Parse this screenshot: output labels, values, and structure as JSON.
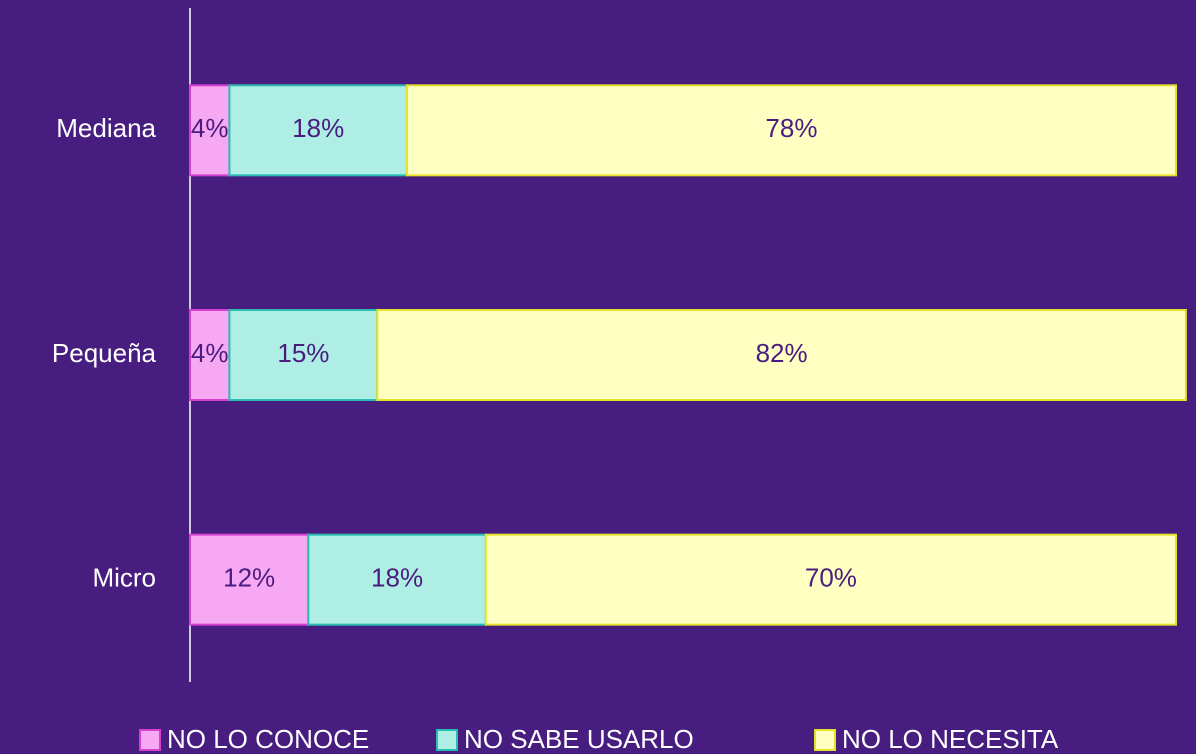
{
  "chart_data": {
    "type": "stacked_bar_horizontal",
    "categories": [
      "Mediana",
      "Pequeña",
      "Micro"
    ],
    "series": [
      {
        "name": "NO LO CONOCE",
        "color": "#f7a8f3",
        "stroke": "#d63fd0",
        "values": [
          4,
          4,
          12
        ],
        "value_labels": [
          "4%",
          "4%",
          "12%"
        ]
      },
      {
        "name": "NO SABE USARLO",
        "color": "#aeeee4",
        "stroke": "#2bbdb0",
        "values": [
          18,
          15,
          18
        ],
        "value_labels": [
          "18%",
          "15%",
          "18%"
        ]
      },
      {
        "name": "NO LO NECESITA",
        "color": "#ffffc2",
        "stroke": "#e6e22a",
        "values": [
          78,
          82,
          70
        ],
        "value_labels": [
          "78%",
          "82%",
          "70%"
        ]
      }
    ],
    "xlim": [
      0,
      100
    ],
    "legend": "bottom"
  }
}
